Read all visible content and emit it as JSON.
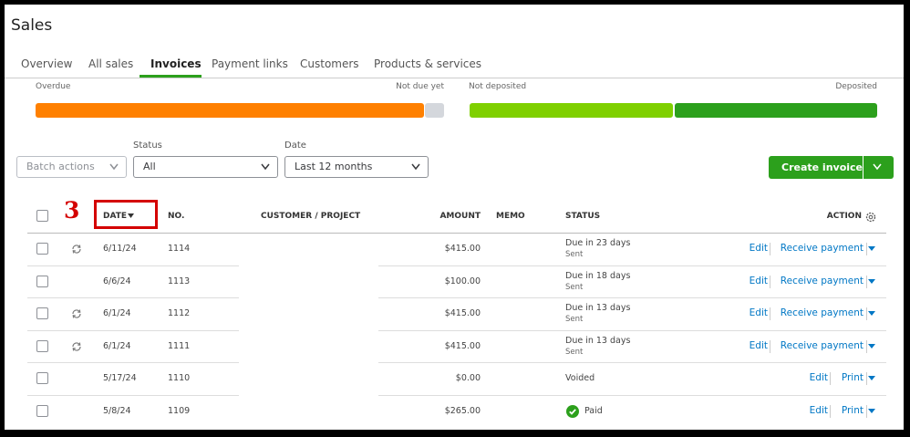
{
  "header": {
    "title": "Sales"
  },
  "tabs": [
    "Overview",
    "All sales",
    "Invoices",
    "Payment links",
    "Customers",
    "Products & services"
  ],
  "summary": {
    "labels": [
      "Overdue",
      "Not due yet",
      "Not deposited",
      "Deposited"
    ]
  },
  "filters": {
    "batch_actions": "Batch actions",
    "status_label": "Status",
    "status_value": "All",
    "date_label": "Date",
    "date_value": "Last 12 months"
  },
  "create_button": "Create invoice",
  "annotation": "3",
  "table": {
    "columns": [
      "DATE",
      "NO.",
      "CUSTOMER / PROJECT",
      "AMOUNT",
      "MEMO",
      "STATUS",
      "ACTION"
    ],
    "rows": [
      {
        "recurring": true,
        "date": "6/11/24",
        "no": "1114",
        "amount": "$415.00",
        "status": "Due in 23 days",
        "status_detail": "Sent",
        "actions": [
          "Edit",
          "Receive payment"
        ]
      },
      {
        "recurring": false,
        "date": "6/6/24",
        "no": "1113",
        "amount": "$100.00",
        "status": "Due in 18 days",
        "status_detail": "Sent",
        "actions": [
          "Edit",
          "Receive payment"
        ]
      },
      {
        "recurring": true,
        "date": "6/1/24",
        "no": "1112",
        "amount": "$415.00",
        "status": "Due in 13 days",
        "status_detail": "Sent",
        "actions": [
          "Edit",
          "Receive payment"
        ]
      },
      {
        "recurring": true,
        "date": "6/1/24",
        "no": "1111",
        "amount": "$415.00",
        "status": "Due in 13 days",
        "status_detail": "Sent",
        "actions": [
          "Edit",
          "Receive payment"
        ]
      },
      {
        "recurring": false,
        "date": "5/17/24",
        "no": "1110",
        "amount": "$0.00",
        "status": "Voided",
        "actions": [
          "Edit",
          "Print"
        ]
      },
      {
        "recurring": false,
        "paid": true,
        "date": "5/8/24",
        "no": "1109",
        "amount": "$265.00",
        "status": "Paid",
        "actions": [
          "Edit",
          "Print"
        ]
      }
    ]
  }
}
